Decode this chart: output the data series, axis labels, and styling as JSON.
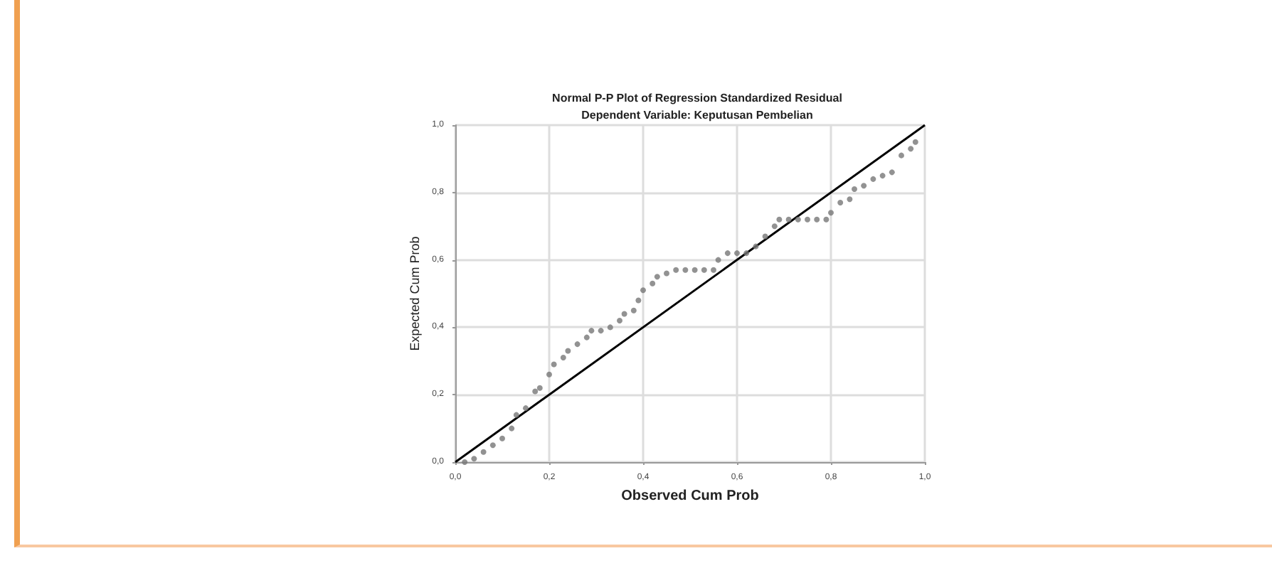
{
  "chart_data": {
    "type": "scatter",
    "title": "Normal P-P Plot of Regression Standardized Residual",
    "subtitle": "Dependent Variable: Keputusan Pembelian",
    "xlabel": "Observed Cum Prob",
    "ylabel": "Expected Cum Prob",
    "xlim": [
      0,
      1
    ],
    "ylim": [
      0,
      1
    ],
    "xticks": [
      {
        "value": 0,
        "label": "0,0"
      },
      {
        "value": 0.2,
        "label": "0,2"
      },
      {
        "value": 0.4,
        "label": "0,4"
      },
      {
        "value": 0.6,
        "label": "0,6"
      },
      {
        "value": 0.8,
        "label": "0,8"
      },
      {
        "value": 1,
        "label": "1,0"
      }
    ],
    "yticks": [
      {
        "value": 0,
        "label": "0,0"
      },
      {
        "value": 0.2,
        "label": "0,2"
      },
      {
        "value": 0.4,
        "label": "0,4"
      },
      {
        "value": 0.6,
        "label": "0,6"
      },
      {
        "value": 0.8,
        "label": "0,8"
      },
      {
        "value": 1,
        "label": "1,0"
      }
    ],
    "grid": true,
    "marker": "circle",
    "series": [
      {
        "color": "#777777",
        "x": [
          0.02,
          0.04,
          0.06,
          0.08,
          0.1,
          0.12,
          0.13,
          0.15,
          0.17,
          0.18,
          0.2,
          0.21,
          0.23,
          0.24,
          0.26,
          0.28,
          0.29,
          0.31,
          0.33,
          0.35,
          0.36,
          0.38,
          0.39,
          0.4,
          0.42,
          0.43,
          0.45,
          0.47,
          0.49,
          0.51,
          0.53,
          0.55,
          0.56,
          0.58,
          0.6,
          0.62,
          0.64,
          0.66,
          0.68,
          0.69,
          0.71,
          0.73,
          0.75,
          0.77,
          0.79,
          0.8,
          0.82,
          0.84,
          0.85,
          0.87,
          0.89,
          0.91,
          0.93,
          0.95,
          0.97,
          0.98
        ],
        "values": [
          0.0,
          0.01,
          0.03,
          0.05,
          0.07,
          0.1,
          0.14,
          0.16,
          0.21,
          0.22,
          0.26,
          0.29,
          0.31,
          0.33,
          0.35,
          0.37,
          0.39,
          0.39,
          0.4,
          0.42,
          0.44,
          0.45,
          0.48,
          0.51,
          0.53,
          0.55,
          0.56,
          0.57,
          0.57,
          0.57,
          0.57,
          0.57,
          0.6,
          0.62,
          0.62,
          0.62,
          0.64,
          0.67,
          0.7,
          0.72,
          0.72,
          0.72,
          0.72,
          0.72,
          0.72,
          0.74,
          0.77,
          0.78,
          0.81,
          0.82,
          0.84,
          0.85,
          0.86,
          0.91,
          0.93,
          0.95
        ]
      },
      {
        "type": "line",
        "marker": "none",
        "color": "#000000",
        "x": [
          0,
          1
        ],
        "values": [
          0,
          1
        ]
      }
    ]
  }
}
